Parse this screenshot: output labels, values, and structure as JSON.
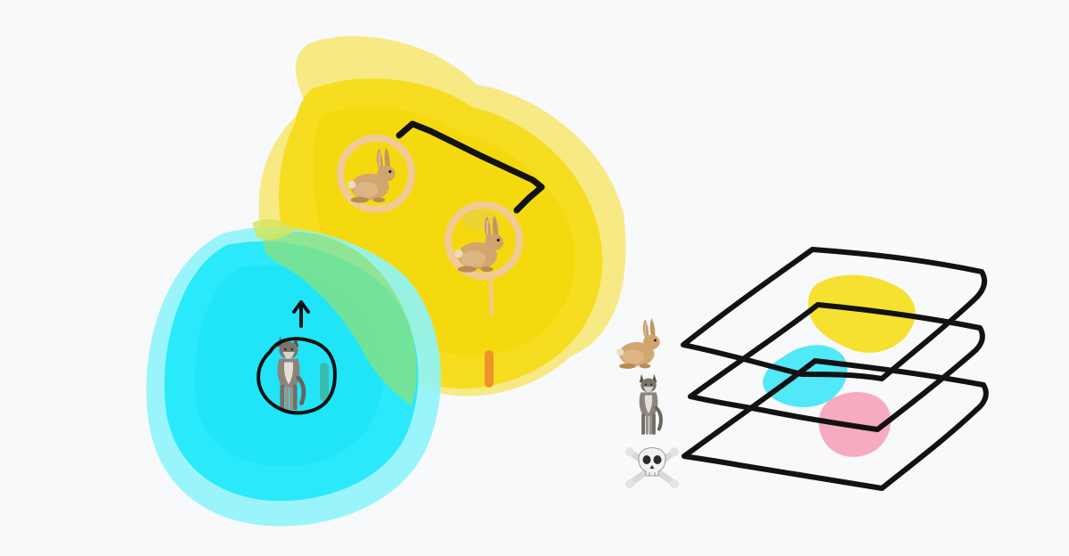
{
  "canvas": {
    "background": "#f8f9fb",
    "ink": "#121212"
  },
  "colors": {
    "prey_zone": "#f6dc19",
    "prey_zone_light": "#f7e86e",
    "predator_zone": "#24e8fa",
    "predator_zone_light": "#8ef4fb",
    "overlap": "#8ee07a",
    "highlight_ring": "#f0c9a0",
    "accent_orange": "#f0922a",
    "accent_teal": "#3fb8a8",
    "layer_yellow": "#f6df26",
    "layer_cyan": "#3ee6f6",
    "layer_pink": "#f7a7bd"
  },
  "icons": {
    "rabbit": "rabbit-icon",
    "wolf": "wolf-icon",
    "skull": "skull-crossbones-icon"
  },
  "food_chain_stack": [
    "rabbit",
    "wolf",
    "skull"
  ]
}
